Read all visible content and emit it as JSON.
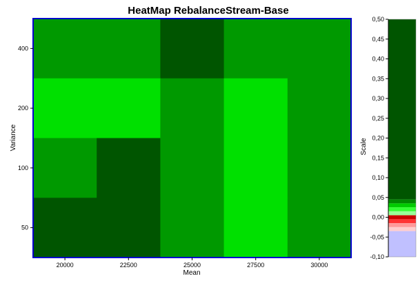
{
  "chart_data": [
    {
      "type": "heatmap",
      "title": "HeatMap RebalanceStream-Base",
      "xlabel": "Mean",
      "ylabel": "Variance",
      "x_categories": [
        "20000",
        "22500",
        "25000",
        "27500",
        "30000"
      ],
      "y_categories": [
        "400",
        "200",
        "100",
        "50"
      ],
      "cell_colors": [
        [
          "#009900",
          "#009900",
          "#005500",
          "#009900",
          "#009900"
        ],
        [
          "#00e000",
          "#00e000",
          "#009900",
          "#00e000",
          "#009900"
        ],
        [
          "#009900",
          "#005500",
          "#009900",
          "#00e000",
          "#009900"
        ],
        [
          "#005500",
          "#005500",
          "#009900",
          "#00e000",
          "#009900"
        ]
      ],
      "border_color": "#0000cc"
    },
    {
      "type": "legend-scale",
      "ylabel": "Scale",
      "ticks": [
        "0,50",
        "0,45",
        "0,40",
        "0,35",
        "0,30",
        "0,25",
        "0,20",
        "0,15",
        "0,10",
        "0,05",
        "0,00",
        "-0,05",
        "-0,10"
      ],
      "ylim": [
        -0.1,
        0.5
      ],
      "bands": [
        {
          "from": 0.045,
          "to": 0.5,
          "color": "#005500"
        },
        {
          "from": 0.035,
          "to": 0.045,
          "color": "#008800"
        },
        {
          "from": 0.025,
          "to": 0.035,
          "color": "#00cc00"
        },
        {
          "from": 0.015,
          "to": 0.025,
          "color": "#33ff33"
        },
        {
          "from": 0.005,
          "to": 0.015,
          "color": "#99ff99"
        },
        {
          "from": -0.005,
          "to": 0.005,
          "color": "#cc0000"
        },
        {
          "from": -0.015,
          "to": -0.005,
          "color": "#ff3333"
        },
        {
          "from": -0.025,
          "to": -0.015,
          "color": "#ff9999"
        },
        {
          "from": -0.035,
          "to": -0.025,
          "color": "#ffcccc"
        },
        {
          "from": -0.1,
          "to": -0.035,
          "color": "#c0c0ff"
        }
      ]
    }
  ]
}
